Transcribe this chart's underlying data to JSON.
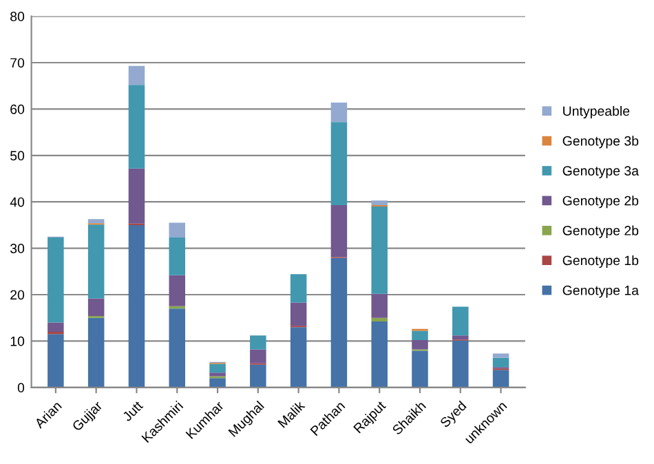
{
  "chart_data": {
    "type": "bar",
    "stacked": true,
    "categories": [
      "Arian",
      "Gujjar",
      "Jutt",
      "Kashmiri",
      "Kumhar",
      "Mughal",
      "Malik",
      "Pathan",
      "Rajput",
      "Shaikh",
      "Syed",
      "unknown"
    ],
    "series": [
      {
        "name": "Genotype 1a",
        "color": "#4572a7",
        "values": [
          11.5,
          15,
          35,
          17,
          2,
          4.9,
          13,
          27.9,
          14.2,
          7.9,
          10.1,
          3.8
        ]
      },
      {
        "name": "Genotype 1b",
        "color": "#aa4643",
        "values": [
          0.5,
          0,
          0.3,
          0,
          0,
          0.3,
          0.3,
          0.2,
          0,
          0,
          0.2,
          0.3
        ]
      },
      {
        "name": "Genotype 2b",
        "color": "#89a54e",
        "values": [
          0,
          0.4,
          0,
          0.5,
          0.4,
          0,
          0,
          0,
          0.8,
          0.3,
          0,
          0
        ]
      },
      {
        "name": "Genotype 2b",
        "color": "#71588f",
        "values": [
          2,
          3.8,
          11.9,
          6.7,
          0.8,
          3,
          5,
          11.2,
          5.2,
          2,
          0.9,
          0.3
        ]
      },
      {
        "name": "Genotype 3a",
        "color": "#4198af",
        "values": [
          18.3,
          15.9,
          18,
          8.1,
          1.9,
          3,
          6.1,
          17.9,
          18.8,
          2,
          6.2,
          2
        ]
      },
      {
        "name": "Genotype 3b",
        "color": "#db843d",
        "values": [
          0,
          0.3,
          0,
          0,
          0.2,
          0,
          0,
          0,
          0.3,
          0.4,
          0,
          0
        ]
      },
      {
        "name": "Untypeable",
        "color": "#93a9cf",
        "values": [
          0.2,
          0.9,
          4.1,
          3.2,
          0.2,
          0,
          0,
          4.2,
          1,
          0,
          0,
          0.9
        ]
      }
    ],
    "ylim": [
      0,
      80
    ],
    "yticks": [
      0,
      10,
      20,
      30,
      40,
      50,
      60,
      70,
      80
    ],
    "grid": "y",
    "legend": "right"
  }
}
